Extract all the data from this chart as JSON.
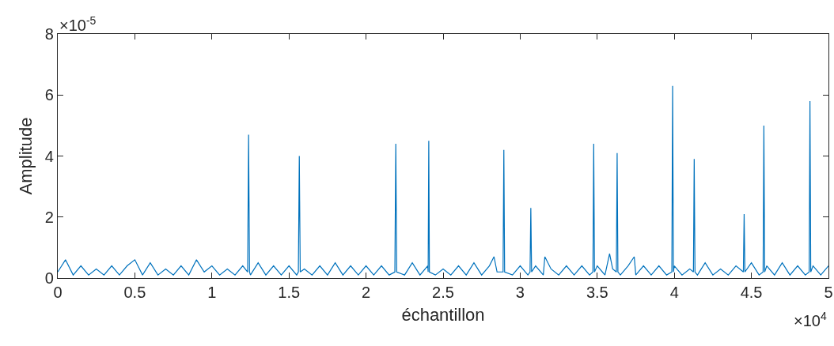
{
  "chart_data": {
    "type": "line",
    "xlabel": "échantillon",
    "ylabel": "Amplitude",
    "annotations": [
      "×10$^{-5}$",
      "×10$^{4}$"
    ],
    "xlim": [
      0,
      5
    ],
    "xticks": [
      0,
      0.5,
      1,
      1.5,
      2,
      2.5,
      3,
      3.5,
      4,
      4.5,
      5
    ],
    "ylim": [
      0,
      8
    ],
    "yticks": [
      0,
      2,
      4,
      6,
      8
    ],
    "grid": false,
    "marker": "none",
    "line_style": "solid",
    "x": [
      0,
      0.05,
      0.1,
      0.15,
      0.2,
      0.25,
      0.3,
      0.35,
      0.4,
      0.45,
      0.5,
      0.55,
      0.6,
      0.65,
      0.7,
      0.75,
      0.8,
      0.85,
      0.9,
      0.95,
      1,
      1.05,
      1.1,
      1.15,
      1.2,
      1.232,
      1.238,
      1.244,
      1.25,
      1.3,
      1.35,
      1.4,
      1.45,
      1.5,
      1.55,
      1.561,
      1.567,
      1.573,
      1.6,
      1.65,
      1.7,
      1.75,
      1.8,
      1.85,
      1.9,
      1.95,
      2,
      2.05,
      2.1,
      2.15,
      2.187,
      2.193,
      2.199,
      2.25,
      2.3,
      2.35,
      2.4,
      2.403,
      2.407,
      2.411,
      2.45,
      2.5,
      2.55,
      2.6,
      2.65,
      2.7,
      2.75,
      2.8,
      2.83,
      2.85,
      2.889,
      2.894,
      2.899,
      2.95,
      3,
      3.05,
      3.064,
      3.069,
      3.074,
      3.1,
      3.15,
      3.16,
      3.2,
      3.25,
      3.3,
      3.35,
      3.4,
      3.45,
      3.472,
      3.477,
      3.482,
      3.5,
      3.55,
      3.58,
      3.6,
      3.624,
      3.629,
      3.634,
      3.65,
      3.7,
      3.74,
      3.75,
      3.8,
      3.85,
      3.9,
      3.95,
      3.984,
      3.989,
      3.994,
      4,
      4.05,
      4.1,
      4.124,
      4.129,
      4.134,
      4.15,
      4.2,
      4.25,
      4.3,
      4.35,
      4.4,
      4.448,
      4.453,
      4.458,
      4.5,
      4.55,
      4.576,
      4.581,
      4.586,
      4.6,
      4.65,
      4.7,
      4.75,
      4.8,
      4.85,
      4.875,
      4.88,
      4.885,
      4.9,
      4.95,
      5
    ],
    "series": [
      {
        "color": "#0072bd",
        "values": [
          0.2,
          0.6,
          0.1,
          0.4,
          0.1,
          0.3,
          0.1,
          0.4,
          0.1,
          0.4,
          0.6,
          0.1,
          0.5,
          0.1,
          0.3,
          0.1,
          0.4,
          0.1,
          0.6,
          0.2,
          0.4,
          0.1,
          0.3,
          0.1,
          0.4,
          0.2,
          4.7,
          0.2,
          0.1,
          0.5,
          0.1,
          0.4,
          0.1,
          0.4,
          0.1,
          0.2,
          4.0,
          0.2,
          0.3,
          0.1,
          0.4,
          0.1,
          0.5,
          0.1,
          0.4,
          0.1,
          0.4,
          0.1,
          0.4,
          0.1,
          0.2,
          4.4,
          0.2,
          0.1,
          0.5,
          0.1,
          0.4,
          0.2,
          4.5,
          0.2,
          0.1,
          0.3,
          0.1,
          0.4,
          0.1,
          0.5,
          0.1,
          0.4,
          0.7,
          0.2,
          0.2,
          4.2,
          0.2,
          0.1,
          0.4,
          0.1,
          0.2,
          2.3,
          0.2,
          0.4,
          0.1,
          0.7,
          0.3,
          0.1,
          0.4,
          0.1,
          0.4,
          0.1,
          0.2,
          4.4,
          0.2,
          0.4,
          0.1,
          0.8,
          0.3,
          0.2,
          4.1,
          0.2,
          0.1,
          0.4,
          0.7,
          0.1,
          0.4,
          0.1,
          0.4,
          0.1,
          0.2,
          6.3,
          0.2,
          0.4,
          0.1,
          0.3,
          0.2,
          3.9,
          0.2,
          0.1,
          0.5,
          0.1,
          0.3,
          0.1,
          0.4,
          0.2,
          2.1,
          0.2,
          0.5,
          0.1,
          0.2,
          5.0,
          0.2,
          0.4,
          0.1,
          0.5,
          0.1,
          0.4,
          0.1,
          0.2,
          5.8,
          0.2,
          0.4,
          0.1,
          0.4
        ]
      }
    ]
  }
}
